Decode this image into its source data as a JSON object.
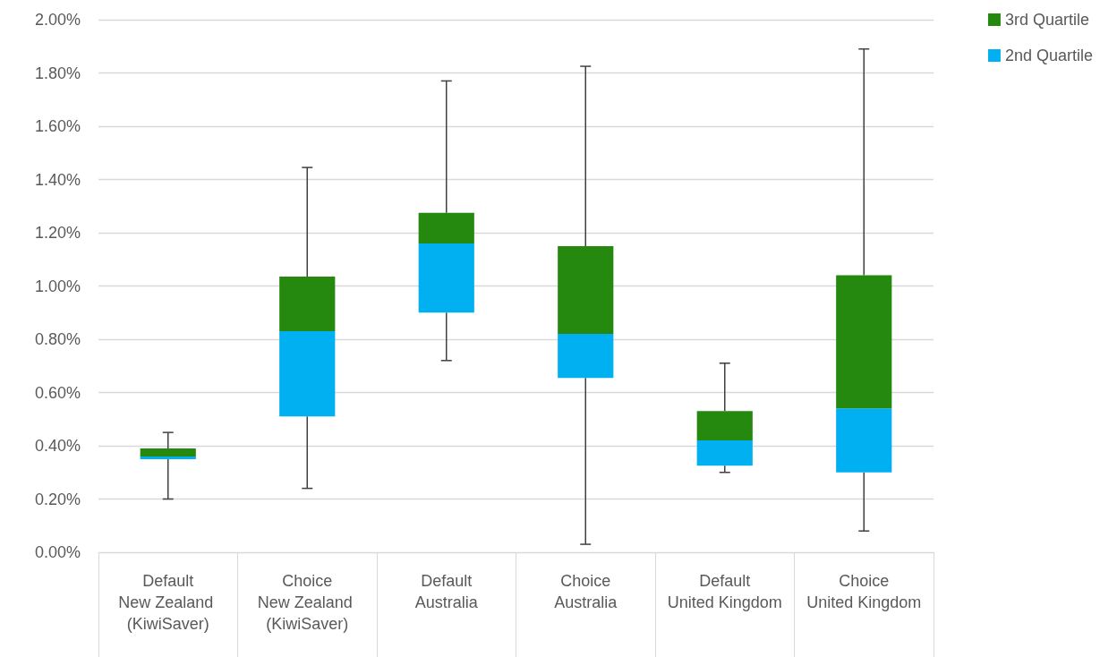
{
  "chart_data": {
    "type": "bar",
    "categories": [
      "Default\nNew Zealand (KiwiSaver)",
      "Choice\nNew Zealand (KiwiSaver)",
      "Default\nAustralia",
      "Choice\nAustralia",
      "Default\nUnited Kingdom",
      "Choice\nUnited Kingdom"
    ],
    "series": [
      {
        "name": "2nd Quartile",
        "color": "#00b0f0",
        "base": [
          0.35,
          0.51,
          0.9,
          0.655,
          0.325,
          0.3
        ],
        "values": [
          0.01,
          0.32,
          0.26,
          0.165,
          0.095,
          0.24
        ]
      },
      {
        "name": "3rd Quartile",
        "color": "#26890f",
        "base": [
          0.36,
          0.83,
          1.16,
          0.82,
          0.42,
          0.54
        ],
        "values": [
          0.03,
          0.205,
          0.115,
          0.33,
          0.11,
          0.5
        ],
        "errors": [
          [
            0.2,
            0.45
          ],
          [
            0.24,
            1.445
          ],
          [
            0.72,
            1.77
          ],
          [
            0.03,
            1.825
          ],
          [
            0.3,
            0.71
          ],
          [
            0.08,
            1.89
          ]
        ]
      }
    ],
    "ylim": [
      0,
      2
    ],
    "yticks": [
      {
        "value": 0,
        "label": "0.00%"
      },
      {
        "value": 0.2,
        "label": "0.20%"
      },
      {
        "value": 0.4,
        "label": "0.40%"
      },
      {
        "value": 0.6,
        "label": "0.60%"
      },
      {
        "value": 0.8,
        "label": "0.80%"
      },
      {
        "value": 1,
        "label": "1.00%"
      },
      {
        "value": 1.2,
        "label": "1.20%"
      },
      {
        "value": 1.4,
        "label": "1.40%"
      },
      {
        "value": 1.6,
        "label": "1.60%"
      },
      {
        "value": 1.8,
        "label": "1.80%"
      },
      {
        "value": 2,
        "label": "2.00%"
      }
    ],
    "grid": "y",
    "legend": "top right"
  }
}
